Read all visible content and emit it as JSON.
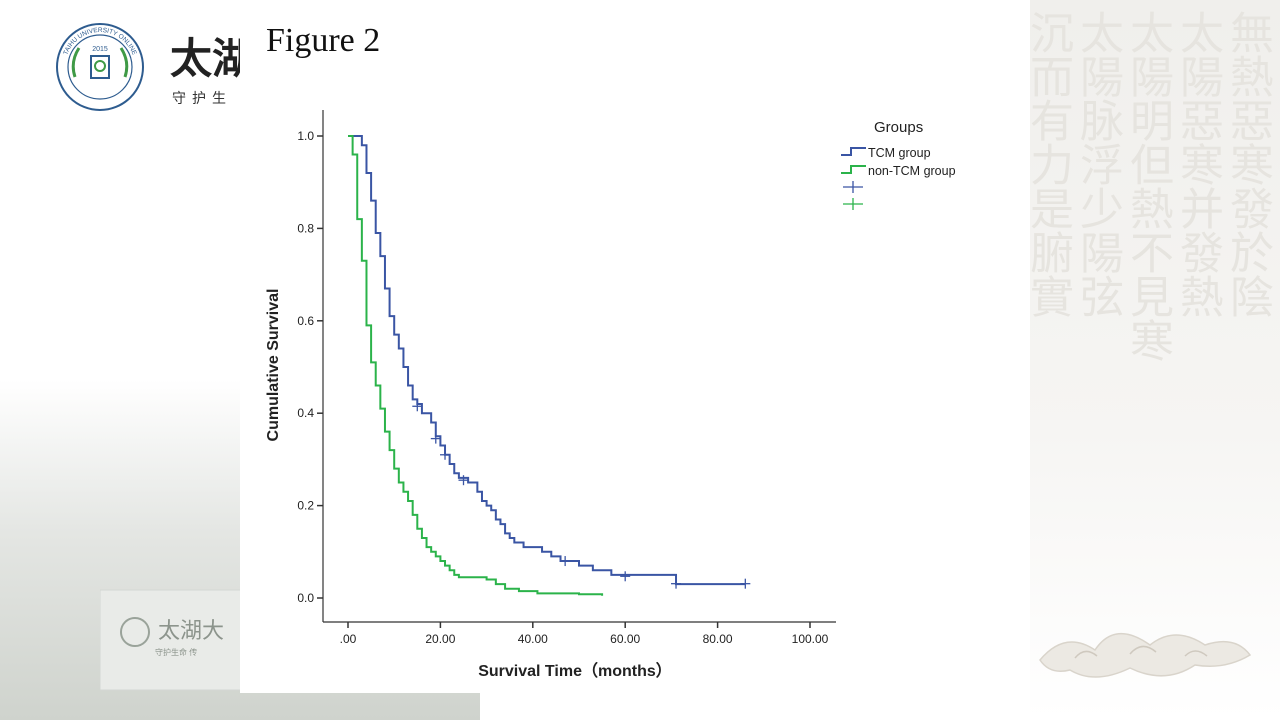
{
  "branding": {
    "seal_text": "TAIHU UNIVERSITY ONLINE",
    "seal_year": "2015",
    "name": "太湖",
    "motto": "守护生",
    "sign_text": "太湖大",
    "sign_subtext": "守护生命 传"
  },
  "background": {
    "calligraphy_columns": [
      "無熱惡寒發於陰",
      "太陽惡寒并發熱",
      "太陽明但熱不見寒",
      "太陽脉浮少陽弦",
      "沉而有力是腑實"
    ]
  },
  "figure": {
    "title": "Figure 2"
  },
  "colors": {
    "tcm": "#3a55a4",
    "non_tcm": "#2bb34a",
    "axis": "#333333"
  },
  "chart_data": {
    "type": "line",
    "subtype": "kaplan-meier-step",
    "xlabel": "Survival Time（months）",
    "ylabel": "Cumulative Survival",
    "xlim": [
      0,
      100
    ],
    "ylim": [
      0,
      1.0
    ],
    "xticks": [
      0,
      20,
      40,
      60,
      80,
      100
    ],
    "xtick_labels": [
      ".00",
      "20.00",
      "40.00",
      "60.00",
      "80.00",
      "100.00"
    ],
    "yticks": [
      0,
      0.2,
      0.4,
      0.6,
      0.8,
      1.0
    ],
    "ytick_labels": [
      "0.0",
      "0.2",
      "0.4",
      "0.6",
      "0.8",
      "1.0"
    ],
    "grid": false,
    "legend": {
      "title": "Groups",
      "placement": "right",
      "entries": [
        {
          "label": "TCM group",
          "kind": "line",
          "series": "tcm"
        },
        {
          "label": "non-TCM group",
          "kind": "line",
          "series": "non_tcm"
        },
        {
          "label": "",
          "kind": "censor",
          "series": "tcm"
        },
        {
          "label": "",
          "kind": "censor",
          "series": "non_tcm"
        }
      ]
    },
    "series": [
      {
        "key": "tcm",
        "name": "TCM group",
        "points": [
          [
            0,
            1.0
          ],
          [
            3,
            0.98
          ],
          [
            4,
            0.92
          ],
          [
            5,
            0.86
          ],
          [
            6,
            0.79
          ],
          [
            7,
            0.74
          ],
          [
            8,
            0.67
          ],
          [
            9,
            0.61
          ],
          [
            10,
            0.57
          ],
          [
            11,
            0.54
          ],
          [
            12,
            0.5
          ],
          [
            13,
            0.46
          ],
          [
            14,
            0.43
          ],
          [
            15,
            0.42
          ],
          [
            16,
            0.4
          ],
          [
            18,
            0.38
          ],
          [
            19,
            0.35
          ],
          [
            20,
            0.33
          ],
          [
            21,
            0.31
          ],
          [
            22,
            0.29
          ],
          [
            23,
            0.27
          ],
          [
            24,
            0.26
          ],
          [
            26,
            0.25
          ],
          [
            28,
            0.23
          ],
          [
            29,
            0.21
          ],
          [
            30,
            0.2
          ],
          [
            31,
            0.19
          ],
          [
            32,
            0.17
          ],
          [
            33,
            0.16
          ],
          [
            34,
            0.14
          ],
          [
            35,
            0.13
          ],
          [
            36,
            0.12
          ],
          [
            38,
            0.11
          ],
          [
            42,
            0.1
          ],
          [
            44,
            0.09
          ],
          [
            46,
            0.08
          ],
          [
            50,
            0.07
          ],
          [
            53,
            0.06
          ],
          [
            57,
            0.05
          ],
          [
            71,
            0.03
          ],
          [
            86,
            0.03
          ]
        ],
        "censored": [
          [
            15,
            0.415
          ],
          [
            19,
            0.345
          ],
          [
            21,
            0.31
          ],
          [
            25,
            0.255
          ],
          [
            47,
            0.08
          ],
          [
            60,
            0.047
          ],
          [
            71,
            0.031
          ],
          [
            86,
            0.031
          ]
        ]
      },
      {
        "key": "non_tcm",
        "name": "non-TCM group",
        "points": [
          [
            0,
            1.0
          ],
          [
            1,
            0.96
          ],
          [
            2,
            0.82
          ],
          [
            3,
            0.73
          ],
          [
            4,
            0.59
          ],
          [
            5,
            0.51
          ],
          [
            6,
            0.46
          ],
          [
            7,
            0.41
          ],
          [
            8,
            0.36
          ],
          [
            9,
            0.32
          ],
          [
            10,
            0.28
          ],
          [
            11,
            0.25
          ],
          [
            12,
            0.23
          ],
          [
            13,
            0.21
          ],
          [
            14,
            0.18
          ],
          [
            15,
            0.15
          ],
          [
            16,
            0.13
          ],
          [
            17,
            0.11
          ],
          [
            18,
            0.1
          ],
          [
            19,
            0.09
          ],
          [
            20,
            0.08
          ],
          [
            21,
            0.07
          ],
          [
            22,
            0.06
          ],
          [
            23,
            0.05
          ],
          [
            24,
            0.045
          ],
          [
            30,
            0.04
          ],
          [
            32,
            0.03
          ],
          [
            34,
            0.02
          ],
          [
            37,
            0.015
          ],
          [
            41,
            0.01
          ],
          [
            50,
            0.008
          ],
          [
            55,
            0.005
          ]
        ],
        "censored": []
      }
    ]
  }
}
